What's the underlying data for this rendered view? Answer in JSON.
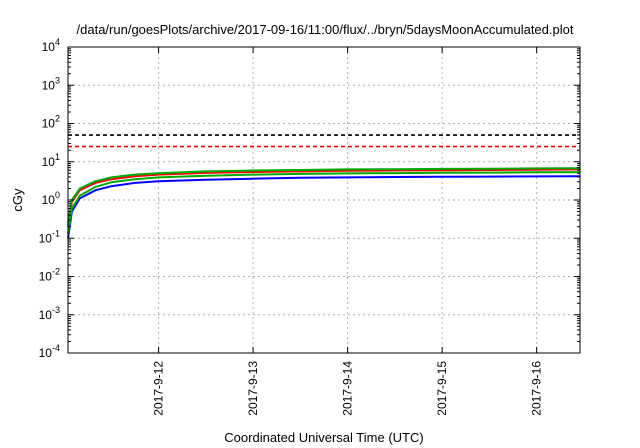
{
  "chart_data": {
    "type": "line",
    "title": "/data/run/goesPlots/archive/2017-09-16/11:00/flux/../bryn/5daysMoonAccumulated.plot",
    "xlabel": "Coordinated Universal Time (UTC)",
    "ylabel": "cGy",
    "y_scale": "log",
    "ylim": [
      0.0001,
      10000
    ],
    "y_ticks": [
      {
        "base": "10",
        "exp": "4",
        "value": 10000
      },
      {
        "base": "10",
        "exp": "3",
        "value": 1000
      },
      {
        "base": "10",
        "exp": "2",
        "value": 100
      },
      {
        "base": "10",
        "exp": "1",
        "value": 10
      },
      {
        "base": "10",
        "exp": "0",
        "value": 1
      },
      {
        "base": "10",
        "exp": "-1",
        "value": 0.1
      },
      {
        "base": "10",
        "exp": "-2",
        "value": 0.01
      },
      {
        "base": "10",
        "exp": "-3",
        "value": 0.001
      },
      {
        "base": "10",
        "exp": "-4",
        "value": 0.0001
      }
    ],
    "xlim": [
      "2017-09-11 01:00",
      "2017-09-16 11:00"
    ],
    "x_ticks": [
      "2017-9-12",
      "2017-9-13",
      "2017-9-14",
      "2017-9-15",
      "2017-9-16"
    ],
    "grid": true,
    "reference_lines": [
      {
        "color": "#000000",
        "style": "dashed",
        "value": 50
      },
      {
        "color": "#ff0000",
        "style": "dashed",
        "value": 25
      }
    ],
    "series": [
      {
        "color": "#ff0000",
        "x": [
          "2017-09-11 01:00",
          "2017-09-11 02:00",
          "2017-09-11 04:00",
          "2017-09-11 08:00",
          "2017-09-11 12:00",
          "2017-09-11 18:00",
          "2017-09-12 00:00",
          "2017-09-12 12:00",
          "2017-09-13 00:00",
          "2017-09-13 12:00",
          "2017-09-14 00:00",
          "2017-09-14 12:00",
          "2017-09-15 00:00",
          "2017-09-15 12:00",
          "2017-09-16 00:00",
          "2017-09-16 11:00"
        ],
        "y": [
          0.2,
          0.9,
          1.8,
          2.8,
          3.5,
          4.2,
          4.6,
          5.1,
          5.4,
          5.6,
          5.8,
          5.9,
          6.0,
          6.1,
          6.2,
          6.3
        ]
      },
      {
        "color": "#00aa00",
        "x": [
          "2017-09-11 01:00",
          "2017-09-11 02:00",
          "2017-09-11 04:00",
          "2017-09-11 08:00",
          "2017-09-11 12:00",
          "2017-09-11 18:00",
          "2017-09-12 00:00",
          "2017-09-12 12:00",
          "2017-09-13 00:00",
          "2017-09-13 12:00",
          "2017-09-14 00:00",
          "2017-09-14 12:00",
          "2017-09-15 00:00",
          "2017-09-15 12:00",
          "2017-09-16 00:00",
          "2017-09-16 11:00"
        ],
        "y": [
          0.25,
          1.0,
          2.0,
          3.1,
          3.9,
          4.6,
          5.0,
          5.6,
          5.9,
          6.1,
          6.3,
          6.4,
          6.5,
          6.6,
          6.7,
          6.8
        ]
      },
      {
        "color": "#0000ff",
        "x": [
          "2017-09-11 01:00",
          "2017-09-11 02:00",
          "2017-09-11 04:00",
          "2017-09-11 08:00",
          "2017-09-11 12:00",
          "2017-09-11 18:00",
          "2017-09-12 00:00",
          "2017-09-12 12:00",
          "2017-09-13 00:00",
          "2017-09-13 12:00",
          "2017-09-14 00:00",
          "2017-09-14 12:00",
          "2017-09-15 00:00",
          "2017-09-15 12:00",
          "2017-09-16 00:00",
          "2017-09-16 11:00"
        ],
        "y": [
          0.1,
          0.5,
          1.1,
          1.8,
          2.3,
          2.8,
          3.1,
          3.4,
          3.6,
          3.8,
          3.9,
          4.0,
          4.05,
          4.1,
          4.15,
          4.2
        ]
      },
      {
        "color": "#00aa00",
        "x": [
          "2017-09-11 01:00",
          "2017-09-11 02:00",
          "2017-09-11 04:00",
          "2017-09-11 08:00",
          "2017-09-11 12:00",
          "2017-09-11 18:00",
          "2017-09-12 00:00",
          "2017-09-12 12:00",
          "2017-09-13 00:00",
          "2017-09-13 12:00",
          "2017-09-14 00:00",
          "2017-09-14 12:00",
          "2017-09-15 00:00",
          "2017-09-15 12:00",
          "2017-09-16 00:00",
          "2017-09-16 11:00"
        ],
        "y": [
          0.13,
          0.6,
          1.3,
          2.2,
          2.9,
          3.5,
          3.9,
          4.3,
          4.6,
          4.8,
          4.95,
          5.05,
          5.15,
          5.2,
          5.3,
          5.35
        ]
      }
    ]
  }
}
